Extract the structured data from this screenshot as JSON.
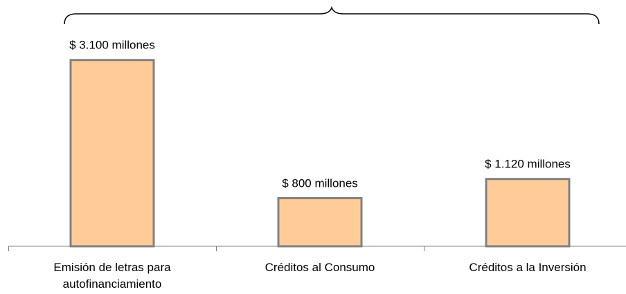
{
  "chart_data": {
    "type": "bar",
    "categories": [
      [
        "Emisión de letras para",
        "autofinanciamiento"
      ],
      [
        "Créditos al Consumo"
      ],
      [
        "Créditos a la Inversión"
      ]
    ],
    "values": [
      3100,
      800,
      1120
    ],
    "data_labels": [
      "$ 3.100 millones",
      "$ 800 millones",
      "$ 1.120 millones"
    ],
    "ylim": [
      0,
      3500
    ],
    "grid": false,
    "legend": "none",
    "colors": {
      "bar_fill": "#FFCC99",
      "bar_stroke": "#808080",
      "axis": "#808080",
      "brace": "#000000"
    }
  }
}
